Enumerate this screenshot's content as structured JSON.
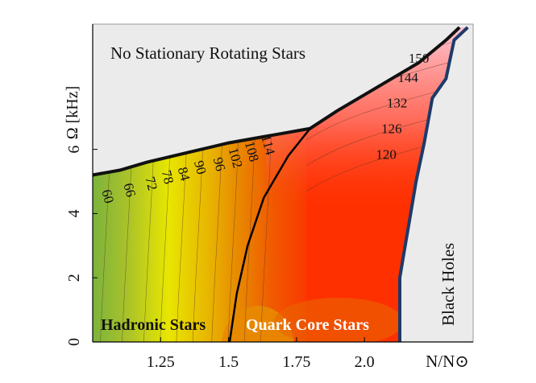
{
  "chart_data": {
    "type": "heatmap",
    "xlabel": "N/N⊙",
    "ylabel": "Ω [kHz]",
    "xlim": [
      1.0,
      2.4
    ],
    "ylim": [
      0,
      9.9
    ],
    "xticks": [
      "1.25",
      "1.5",
      "1.75",
      "2.0"
    ],
    "xtick_values": [
      1.25,
      1.5,
      1.75,
      2.0
    ],
    "yticks": [
      "0",
      "2",
      "4",
      "6"
    ],
    "ytick_values": [
      0,
      2,
      4,
      6
    ],
    "grid": false,
    "kepler_boundary": [
      [
        1.0,
        5.2
      ],
      [
        1.1,
        5.35
      ],
      [
        1.2,
        5.6
      ],
      [
        1.3,
        5.8
      ],
      [
        1.4,
        6.0
      ],
      [
        1.5,
        6.2
      ],
      [
        1.6,
        6.35
      ],
      [
        1.7,
        6.5
      ],
      [
        1.8,
        6.65
      ],
      [
        1.9,
        7.2
      ],
      [
        2.0,
        7.7
      ],
      [
        2.1,
        8.2
      ],
      [
        2.2,
        8.7
      ],
      [
        2.3,
        9.4
      ],
      [
        2.35,
        9.8
      ]
    ],
    "black_hole_boundary": [
      [
        2.38,
        9.8
      ],
      [
        2.33,
        9.4
      ],
      [
        2.3,
        8.2
      ],
      [
        2.25,
        7.6
      ],
      [
        2.22,
        6.2
      ],
      [
        2.19,
        5.0
      ],
      [
        2.17,
        4.0
      ],
      [
        2.15,
        3.0
      ],
      [
        2.13,
        2.0
      ],
      [
        2.13,
        0
      ]
    ],
    "phase_transition_line": [
      [
        1.504,
        0
      ],
      [
        1.53,
        1.5
      ],
      [
        1.57,
        3.0
      ],
      [
        1.63,
        4.5
      ],
      [
        1.72,
        5.8
      ],
      [
        1.8,
        6.65
      ]
    ],
    "contour_labels": [
      {
        "text": "60",
        "x": 1.04,
        "y": 4.5
      },
      {
        "text": "66",
        "x": 1.12,
        "y": 4.7
      },
      {
        "text": "72",
        "x": 1.2,
        "y": 4.9
      },
      {
        "text": "78",
        "x": 1.26,
        "y": 5.1
      },
      {
        "text": "84",
        "x": 1.32,
        "y": 5.2
      },
      {
        "text": "90",
        "x": 1.38,
        "y": 5.4
      },
      {
        "text": "96",
        "x": 1.45,
        "y": 5.5
      },
      {
        "text": "102",
        "x": 1.51,
        "y": 5.7
      },
      {
        "text": "108",
        "x": 1.57,
        "y": 5.9
      },
      {
        "text": "114",
        "x": 1.63,
        "y": 6.1
      },
      {
        "text": "120",
        "x": 2.08,
        "y": 5.7
      },
      {
        "text": "126",
        "x": 2.1,
        "y": 6.5
      },
      {
        "text": "132",
        "x": 2.12,
        "y": 7.3
      },
      {
        "text": "144",
        "x": 2.16,
        "y": 8.1
      },
      {
        "text": "150",
        "x": 2.2,
        "y": 8.7
      }
    ],
    "region_labels": {
      "no_stationary": "No Stationary Rotating Stars",
      "hadronic": "Hadronic Stars",
      "quark_core": "Quark Core Stars",
      "black_holes": "Black Holes"
    },
    "colors": {
      "low": "#7cb33c",
      "mid": "#e8e600",
      "high": "#ff2a00",
      "top": "#ffb4c4",
      "background": "#ebebeb"
    }
  }
}
